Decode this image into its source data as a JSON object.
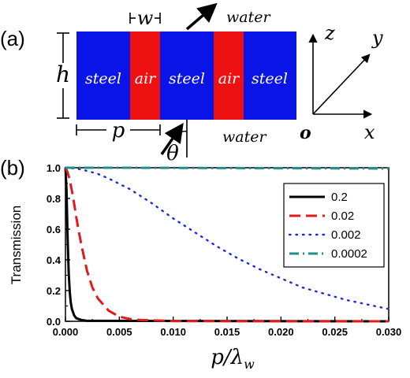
{
  "panel_a": {
    "label": "(a)",
    "layers": [
      {
        "text": "steel",
        "color": "#0a14e6"
      },
      {
        "text": "air",
        "color": "#ee1111"
      },
      {
        "text": "steel",
        "color": "#0a14e6"
      },
      {
        "text": "air",
        "color": "#ee1111"
      },
      {
        "text": "steel",
        "color": "#0a14e6"
      }
    ],
    "w_label": "w",
    "h_label": "h",
    "p_label": "p",
    "theta_label": "θ",
    "water_top": "water",
    "water_bottom": "water",
    "axes": {
      "z": "z",
      "y": "y",
      "x": "x",
      "origin": "o"
    }
  },
  "panel_b": {
    "label": "(b)",
    "chart_data": {
      "type": "line",
      "xlabel_main": "p/λ",
      "xlabel_sub": "w",
      "ylabel": "Transmission",
      "xlim": [
        0,
        0.03
      ],
      "ylim": [
        0,
        1.0
      ],
      "xticks": [
        "0.000",
        "0.005",
        "0.010",
        "0.015",
        "0.020",
        "0.025",
        "0.030"
      ],
      "yticks": [
        "0.0",
        "0.2",
        "0.4",
        "0.6",
        "0.8",
        "1.0"
      ],
      "legend_position": "top-right",
      "series": [
        {
          "name": "0.2",
          "color": "#000000",
          "style": "solid",
          "x": [
            0,
            0.0001,
            0.0002,
            0.0003,
            0.0004,
            0.0005,
            0.0006,
            0.0008,
            0.001,
            0.0015,
            0.002,
            0.03
          ],
          "y": [
            1.0,
            0.85,
            0.55,
            0.32,
            0.19,
            0.12,
            0.08,
            0.04,
            0.02,
            0.008,
            0.003,
            0.0
          ]
        },
        {
          "name": "0.02",
          "color": "#e01b1b",
          "style": "dashed",
          "x": [
            0,
            0.0002,
            0.0004,
            0.0006,
            0.0008,
            0.001,
            0.0012,
            0.0015,
            0.002,
            0.0025,
            0.003,
            0.004,
            0.005,
            0.006,
            0.007,
            0.01,
            0.03
          ],
          "y": [
            1.0,
            0.97,
            0.92,
            0.85,
            0.77,
            0.68,
            0.6,
            0.49,
            0.33,
            0.22,
            0.15,
            0.07,
            0.03,
            0.015,
            0.008,
            0.002,
            0.0
          ]
        },
        {
          "name": "0.002",
          "color": "#1a2bd6",
          "style": "dotted",
          "x": [
            0,
            0.001,
            0.002,
            0.003,
            0.004,
            0.005,
            0.006,
            0.008,
            0.01,
            0.012,
            0.014,
            0.016,
            0.018,
            0.02,
            0.022,
            0.024,
            0.026,
            0.028,
            0.03
          ],
          "y": [
            1.0,
            0.995,
            0.98,
            0.96,
            0.93,
            0.895,
            0.86,
            0.77,
            0.67,
            0.58,
            0.49,
            0.41,
            0.34,
            0.28,
            0.22,
            0.18,
            0.14,
            0.11,
            0.08
          ]
        },
        {
          "name": "0.0002",
          "color": "#1e8f8a",
          "style": "dashdot",
          "x": [
            0,
            0.005,
            0.01,
            0.015,
            0.02,
            0.025,
            0.03
          ],
          "y": [
            1.0,
            1.0,
            0.999,
            0.998,
            0.997,
            0.996,
            0.995
          ]
        }
      ]
    }
  }
}
